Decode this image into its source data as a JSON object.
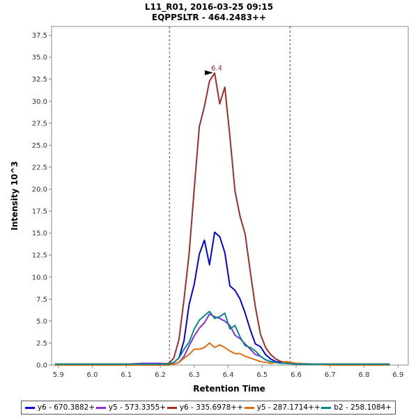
{
  "chart_data": {
    "type": "line",
    "title": "L11_R01, 2016-03-25 09:15",
    "subtitle": "EQPPSLTR - 464.2483++",
    "xlabel": "Retention Time",
    "ylabel": "Intensity 10^3",
    "xlim": [
      5.88,
      6.93
    ],
    "ylim": [
      0,
      38.5
    ],
    "x_ticks": [
      "5.9",
      "6.0",
      "6.1",
      "6.2",
      "6.3",
      "6.4",
      "6.5",
      "6.6",
      "6.7",
      "6.8",
      "6.9"
    ],
    "y_ticks": [
      "0.0",
      "2.5",
      "5.0",
      "7.5",
      "10.0",
      "12.5",
      "15.0",
      "17.5",
      "20.0",
      "22.5",
      "25.0",
      "27.5",
      "30.0",
      "32.5",
      "35.0",
      "37.5"
    ],
    "boundaries": [
      6.227,
      6.582
    ],
    "peak_annotation": {
      "label": "6.4",
      "x": 6.364,
      "y": 33.2,
      "color": "#a52a2a"
    },
    "x": [
      5.89,
      6.0,
      6.1,
      6.15,
      6.2,
      6.225,
      6.24,
      6.255,
      6.27,
      6.285,
      6.3,
      6.315,
      6.33,
      6.345,
      6.36,
      6.375,
      6.39,
      6.405,
      6.42,
      6.435,
      6.45,
      6.465,
      6.48,
      6.495,
      6.51,
      6.525,
      6.54,
      6.555,
      6.57,
      6.6,
      6.65,
      6.7,
      6.8,
      6.875
    ],
    "series": [
      {
        "name": "y6 - 670.3882+",
        "color": "#0000ee",
        "values": [
          0.1,
          0.1,
          0.1,
          0.1,
          0.1,
          0.1,
          0.3,
          0.8,
          2.8,
          6.9,
          9.2,
          12.6,
          14.2,
          11.4,
          15.1,
          14.6,
          12.8,
          9.0,
          8.5,
          7.5,
          5.9,
          4.0,
          2.4,
          2.1,
          1.2,
          0.7,
          0.4,
          0.3,
          0.2,
          0.1,
          0.1,
          0.1,
          0.1,
          0.1
        ]
      },
      {
        "name": "y5 - 573.3355+",
        "color": "#8a2be2",
        "values": [
          0.1,
          0.1,
          0.1,
          0.2,
          0.2,
          0.1,
          0.1,
          0.3,
          1.0,
          2.2,
          3.3,
          4.2,
          4.8,
          5.8,
          5.5,
          5.3,
          5.0,
          4.5,
          3.4,
          3.0,
          2.4,
          1.8,
          1.2,
          1.0,
          0.6,
          0.4,
          0.3,
          0.2,
          0.2,
          0.1,
          0.1,
          0.1,
          0.1,
          0.1
        ]
      },
      {
        "name": "y6 - 335.6978++",
        "color": "#a52a2a",
        "values": [
          0.1,
          0.1,
          0.1,
          0.1,
          0.1,
          0.2,
          0.8,
          2.9,
          7.5,
          12.7,
          20.0,
          27.1,
          29.4,
          32.3,
          33.2,
          29.7,
          31.6,
          26.0,
          19.8,
          16.9,
          14.9,
          10.6,
          6.6,
          3.5,
          2.0,
          1.2,
          0.7,
          0.4,
          0.3,
          0.2,
          0.1,
          0.1,
          0.1,
          0.1
        ]
      },
      {
        "name": "y5 - 287.1714++",
        "color": "#e06c10",
        "values": [
          0.0,
          0.0,
          0.0,
          0.0,
          0.0,
          0.0,
          0.1,
          0.3,
          0.8,
          1.2,
          1.8,
          1.8,
          2.0,
          2.5,
          2.0,
          2.3,
          2.0,
          1.6,
          1.3,
          1.3,
          1.0,
          0.8,
          0.6,
          0.4,
          0.3,
          0.2,
          0.3,
          0.2,
          0.4,
          0.2,
          0.1,
          0.0,
          0.0,
          0.0
        ]
      },
      {
        "name": "b2 - 258.1084+",
        "color": "#008b8b",
        "values": [
          0.1,
          0.1,
          0.1,
          0.1,
          0.1,
          0.1,
          0.3,
          0.8,
          1.8,
          2.6,
          4.1,
          5.1,
          5.6,
          6.1,
          5.3,
          5.5,
          5.9,
          4.1,
          4.5,
          3.2,
          2.2,
          2.0,
          1.6,
          1.0,
          0.6,
          0.4,
          0.3,
          0.2,
          0.2,
          0.1,
          0.1,
          0.1,
          0.1,
          0.1
        ]
      }
    ]
  }
}
